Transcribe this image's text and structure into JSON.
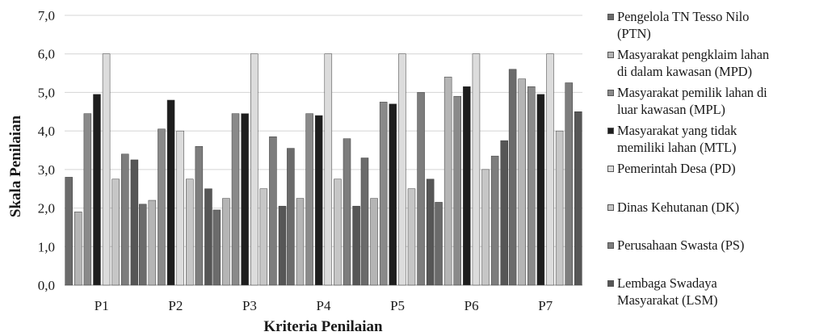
{
  "chart_data": {
    "type": "bar",
    "xlabel": "Kriteria Penilaian",
    "ylabel": "Skala Penilaian",
    "ylim": [
      0,
      7
    ],
    "yticks": [
      "0,0",
      "1,0",
      "2,0",
      "3,0",
      "4,0",
      "5,0",
      "6,0",
      "7,0"
    ],
    "grid": true,
    "legend_position": "right",
    "categories": [
      "P1",
      "P2",
      "P3",
      "P4",
      "P5",
      "P6",
      "P7"
    ],
    "series": [
      {
        "name": "Pengelola TN Tesso Nilo (PTN)",
        "color": "#6b6b6b",
        "values": [
          2.8,
          2.1,
          1.95,
          3.55,
          3.3,
          2.15,
          5.6
        ]
      },
      {
        "name": "Masyarakat pengklaim lahan di dalam kawasan (MPD)",
        "color": "#b5b5b5",
        "values": [
          1.9,
          2.2,
          2.25,
          2.25,
          2.25,
          5.4,
          5.35
        ]
      },
      {
        "name": "Masyarakat pemilik lahan di luar kawasan (MPL)",
        "color": "#8a8a8a",
        "values": [
          4.45,
          4.05,
          4.45,
          4.45,
          4.75,
          4.9,
          5.15
        ]
      },
      {
        "name": "Masyarakat yang tidak memiliki lahan (MTL)",
        "color": "#1e1e1e",
        "values": [
          4.95,
          4.8,
          4.45,
          4.4,
          4.7,
          5.15,
          4.95
        ]
      },
      {
        "name": "Pemerintah Desa (PD)",
        "color": "#dcdcdc",
        "values": [
          6.0,
          4.0,
          6.0,
          6.0,
          6.0,
          6.0,
          6.0
        ]
      },
      {
        "name": "Dinas Kehutanan (DK)",
        "color": "#c6c6c6",
        "values": [
          2.75,
          2.75,
          2.5,
          2.75,
          2.5,
          3.0,
          4.0
        ]
      },
      {
        "name": "Perusahaan Swasta (PS)",
        "color": "#7d7d7d",
        "values": [
          3.4,
          3.6,
          3.85,
          3.8,
          5.0,
          3.35,
          5.25
        ]
      },
      {
        "name": "Lembaga Swadaya Masyarakat (LSM)",
        "color": "#565656",
        "values": [
          3.25,
          2.5,
          2.05,
          2.05,
          2.75,
          3.75,
          4.5
        ]
      }
    ]
  },
  "legend": {
    "lines": [
      [
        "Pengelola TN Tesso Nilo",
        "(PTN)"
      ],
      [
        "Masyarakat pengklaim lahan",
        "di dalam kawasan (MPD)"
      ],
      [
        "Masyarakat pemilik lahan di",
        "luar kawasan (MPL)"
      ],
      [
        "Masyarakat yang tidak",
        "memiliki lahan (MTL)"
      ],
      [
        "Pemerintah Desa (PD)"
      ],
      [
        "Dinas Kehutanan (DK)"
      ],
      [
        "Perusahaan Swasta (PS)"
      ],
      [
        "Lembaga Swadaya",
        "Masyarakat (LSM)"
      ]
    ]
  }
}
